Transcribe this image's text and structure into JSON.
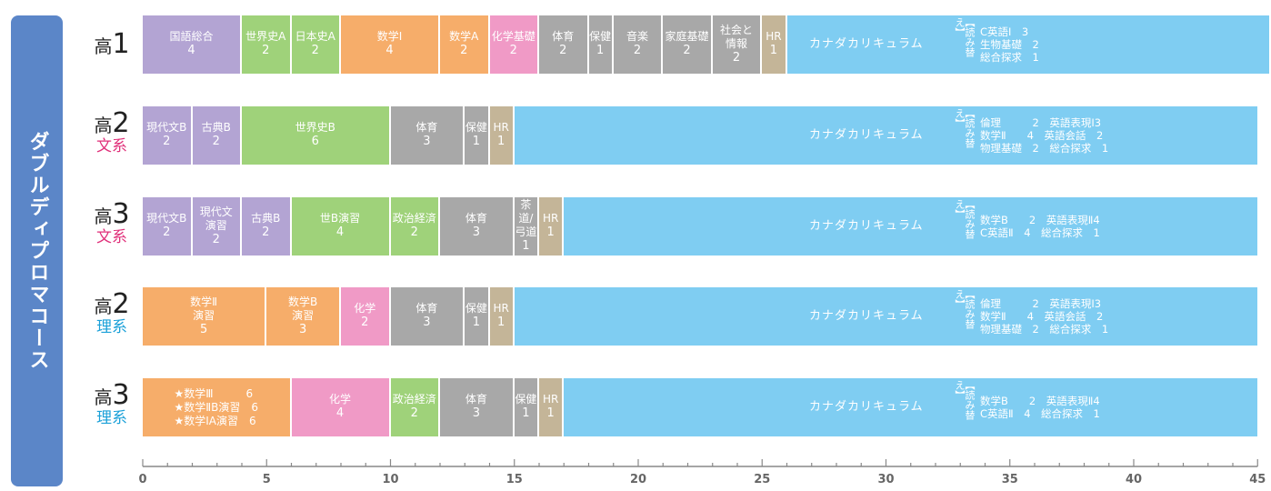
{
  "side_title": "ダブルディプロマコース",
  "rows": [
    {
      "grade_prefix": "高",
      "grade_num": "1",
      "track": "",
      "track_color": "",
      "cells": [
        {
          "name": "国語総合",
          "credits": "4",
          "start": 0,
          "span": 4,
          "color": "#b3a4d3"
        },
        {
          "name": "世界史A",
          "credits": "2",
          "start": 4,
          "span": 2,
          "color": "#9fd27a"
        },
        {
          "name": "日本史A",
          "credits": "2",
          "start": 6,
          "span": 2,
          "color": "#9fd27a"
        },
        {
          "name": "数学Ⅰ",
          "credits": "4",
          "start": 8,
          "span": 4,
          "color": "#f6ad6a"
        },
        {
          "name": "数学A",
          "credits": "2",
          "start": 12,
          "span": 2,
          "color": "#f6ad6a"
        },
        {
          "name": "化学基礎",
          "credits": "2",
          "start": 14,
          "span": 2,
          "color": "#f09ac6"
        },
        {
          "name": "体育",
          "credits": "2",
          "start": 16,
          "span": 2,
          "color": "#a8a8a8"
        },
        {
          "name": "保健",
          "credits": "1",
          "start": 18,
          "span": 1,
          "color": "#a8a8a8"
        },
        {
          "name": "音楽",
          "credits": "2",
          "start": 19,
          "span": 2,
          "color": "#a8a8a8"
        },
        {
          "name": "家庭基礎",
          "credits": "2",
          "start": 21,
          "span": 2,
          "color": "#a8a8a8"
        },
        {
          "name": "社会と\n情報",
          "credits": "2",
          "start": 23,
          "span": 2,
          "color": "#a8a8a8"
        },
        {
          "name": "HR",
          "credits": "1",
          "start": 25,
          "span": 1,
          "color": "#c4b598"
        }
      ],
      "cc_start": 26,
      "cc_end": 45.6,
      "notes": "C英語Ⅰ　3\n生物基礎　2\n総合探求　1"
    },
    {
      "grade_prefix": "高",
      "grade_num": "2",
      "track": "文系",
      "track_color": "#e0307a",
      "cells": [
        {
          "name": "現代文B",
          "credits": "2",
          "start": 0,
          "span": 2,
          "color": "#b3a4d3"
        },
        {
          "name": "古典B",
          "credits": "2",
          "start": 2,
          "span": 2,
          "color": "#b3a4d3"
        },
        {
          "name": "世界史B",
          "credits": "6",
          "start": 4,
          "span": 6,
          "color": "#9fd27a"
        },
        {
          "name": "体育",
          "credits": "3",
          "start": 10,
          "span": 3,
          "color": "#a8a8a8"
        },
        {
          "name": "保健",
          "credits": "1",
          "start": 13,
          "span": 1,
          "color": "#a8a8a8"
        },
        {
          "name": "HR",
          "credits": "1",
          "start": 14,
          "span": 1,
          "color": "#c4b598"
        }
      ],
      "cc_start": 15,
      "cc_end": 45,
      "notes": "倫理　　　2　英語表現Ⅰ3\n数学Ⅱ　　4　英語会話　2\n物理基礎　2　総合探求　1"
    },
    {
      "grade_prefix": "高",
      "grade_num": "3",
      "track": "文系",
      "track_color": "#e0307a",
      "cells": [
        {
          "name": "現代文B",
          "credits": "2",
          "start": 0,
          "span": 2,
          "color": "#b3a4d3"
        },
        {
          "name": "現代文\n演習",
          "credits": "2",
          "start": 2,
          "span": 2,
          "color": "#b3a4d3"
        },
        {
          "name": "古典B",
          "credits": "2",
          "start": 4,
          "span": 2,
          "color": "#b3a4d3"
        },
        {
          "name": "世B演習",
          "credits": "4",
          "start": 6,
          "span": 4,
          "color": "#9fd27a"
        },
        {
          "name": "政治経済",
          "credits": "2",
          "start": 10,
          "span": 2,
          "color": "#9fd27a"
        },
        {
          "name": "体育",
          "credits": "3",
          "start": 12,
          "span": 3,
          "color": "#a8a8a8"
        },
        {
          "name": "茶道/\n弓道",
          "credits": "1",
          "start": 15,
          "span": 1,
          "color": "#a8a8a8"
        },
        {
          "name": "HR",
          "credits": "1",
          "start": 16,
          "span": 1,
          "color": "#c4b598"
        }
      ],
      "cc_start": 17,
      "cc_end": 45,
      "notes": "数学B　　2　英語表現Ⅱ4\nC英語Ⅱ　4　総合探求　1"
    },
    {
      "grade_prefix": "高",
      "grade_num": "2",
      "track": "理系",
      "track_color": "#1aa0d8",
      "cells": [
        {
          "name": "数学Ⅱ\n演習",
          "credits": "5",
          "start": 0,
          "span": 5,
          "color": "#f6ad6a"
        },
        {
          "name": "数学B\n演習",
          "credits": "3",
          "start": 5,
          "span": 3,
          "color": "#f6ad6a"
        },
        {
          "name": "化学",
          "credits": "2",
          "start": 8,
          "span": 2,
          "color": "#f09ac6"
        },
        {
          "name": "体育",
          "credits": "3",
          "start": 10,
          "span": 3,
          "color": "#a8a8a8"
        },
        {
          "name": "保健",
          "credits": "1",
          "start": 13,
          "span": 1,
          "color": "#a8a8a8"
        },
        {
          "name": "HR",
          "credits": "1",
          "start": 14,
          "span": 1,
          "color": "#c4b598"
        }
      ],
      "cc_start": 15,
      "cc_end": 45,
      "notes": "倫理　　　2　英語表現Ⅰ3\n数学Ⅱ　　4　英語会話　2\n物理基礎　2　総合探求　1"
    },
    {
      "grade_prefix": "高",
      "grade_num": "3",
      "track": "理系",
      "track_color": "#1aa0d8",
      "cells": [
        {
          "name": "★数学Ⅲ　　　6\n★数学ⅡB演習　6\n★数学ⅠA演習　6",
          "credits": "",
          "start": 0,
          "span": 6,
          "color": "#f6ad6a",
          "special": true
        },
        {
          "name": "化学",
          "credits": "4",
          "start": 6,
          "span": 4,
          "color": "#f09ac6"
        },
        {
          "name": "政治経済",
          "credits": "2",
          "start": 10,
          "span": 2,
          "color": "#9fd27a"
        },
        {
          "name": "体育",
          "credits": "3",
          "start": 12,
          "span": 3,
          "color": "#a8a8a8"
        },
        {
          "name": "保健",
          "credits": "1",
          "start": 15,
          "span": 1,
          "color": "#a8a8a8"
        },
        {
          "name": "HR",
          "credits": "1",
          "start": 16,
          "span": 1,
          "color": "#c4b598"
        }
      ],
      "cc_start": 17,
      "cc_end": 45,
      "notes": "数学B　　2　英語表現Ⅱ4\nC英語Ⅱ　4　総合探求　1"
    }
  ],
  "cc_label": "カナダカリキュラム",
  "yomikae": "【読み替え】",
  "cc_color": "#7fcdf2",
  "axis": {
    "min": 0,
    "max": 45,
    "major_ticks": [
      "0",
      "5",
      "10",
      "15",
      "20",
      "25",
      "30",
      "35",
      "40",
      "45"
    ],
    "tick_color": "#888888"
  }
}
